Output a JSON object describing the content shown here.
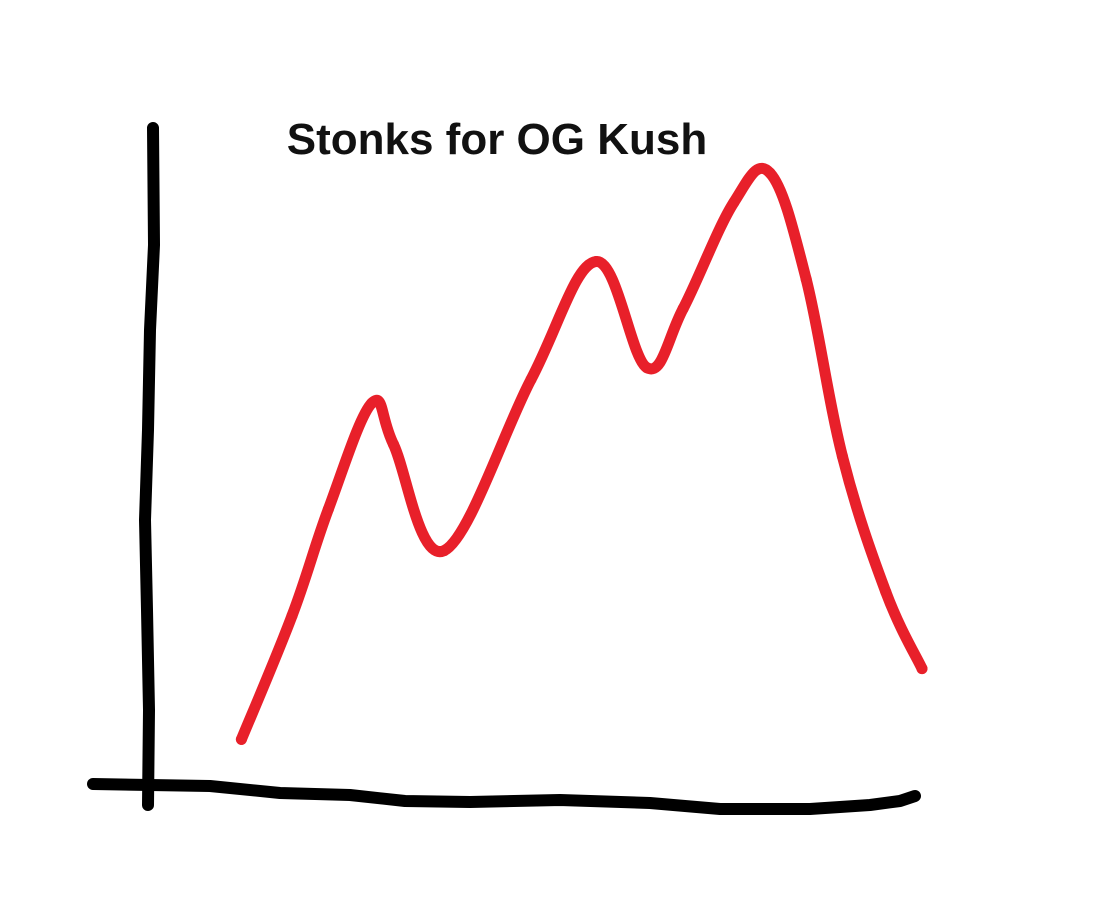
{
  "chart_data": {
    "type": "line",
    "title": "Stonks for OG Kush",
    "xlabel": "",
    "ylabel": "",
    "grid": false,
    "legend": "none",
    "xlim": [
      0,
      100
    ],
    "ylim": [
      0,
      100
    ],
    "series": [
      {
        "color": "#e8202a",
        "points": [
          {
            "x": 6,
            "y": 4
          },
          {
            "x": 13,
            "y": 25
          },
          {
            "x": 18,
            "y": 43
          },
          {
            "x": 24,
            "y": 61
          },
          {
            "x": 27,
            "y": 54
          },
          {
            "x": 34,
            "y": 36
          },
          {
            "x": 46,
            "y": 65
          },
          {
            "x": 55,
            "y": 85
          },
          {
            "x": 62,
            "y": 67
          },
          {
            "x": 67,
            "y": 77
          },
          {
            "x": 74,
            "y": 95
          },
          {
            "x": 79,
            "y": 100
          },
          {
            "x": 84,
            "y": 82
          },
          {
            "x": 89,
            "y": 52
          },
          {
            "x": 95,
            "y": 29
          },
          {
            "x": 100,
            "y": 16
          }
        ]
      }
    ]
  },
  "style": {
    "axis_color": "#000000",
    "title_color": "#111111",
    "background": "#ffffff"
  }
}
